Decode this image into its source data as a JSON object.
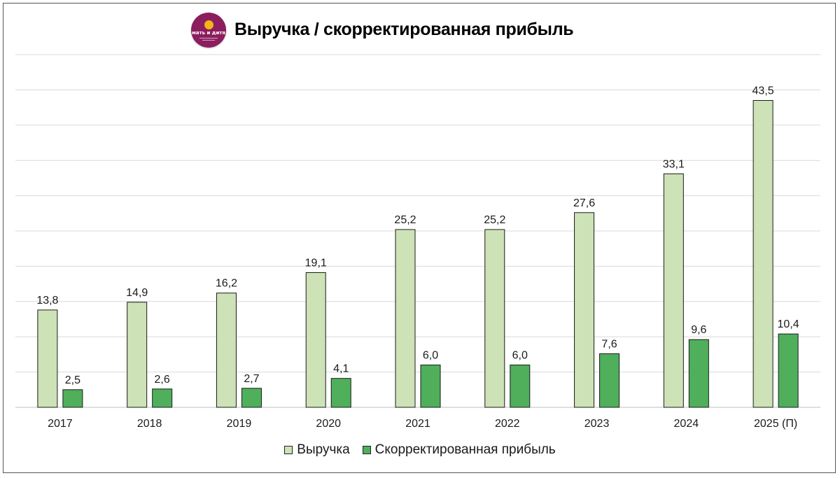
{
  "logo": {
    "brand_text": "мать и дитя"
  },
  "chart_data": {
    "type": "bar",
    "title": "Выручка / скорректированная прибыль",
    "categories": [
      "2017",
      "2018",
      "2019",
      "2020",
      "2021",
      "2022",
      "2023",
      "2024",
      "2025 (П)"
    ],
    "series": [
      {
        "name": "Выручка",
        "color": "#cde2b6",
        "values": [
          13.8,
          14.9,
          16.2,
          19.1,
          25.2,
          25.2,
          27.6,
          33.1,
          43.5
        ],
        "labels": [
          "13,8",
          "14,9",
          "16,2",
          "19,1",
          "25,2",
          "25,2",
          "27,6",
          "33,1",
          "43,5"
        ]
      },
      {
        "name": "Скорректированная прибыль",
        "color": "#4faf5b",
        "values": [
          2.5,
          2.6,
          2.7,
          4.1,
          6.0,
          6.0,
          7.6,
          9.6,
          10.4
        ],
        "labels": [
          "2,5",
          "2,6",
          "2,7",
          "4,1",
          "6,0",
          "6,0",
          "7,6",
          "9,6",
          "10,4"
        ]
      }
    ],
    "ylim": [
      0,
      50
    ],
    "grid": true,
    "legend_position": "bottom"
  }
}
